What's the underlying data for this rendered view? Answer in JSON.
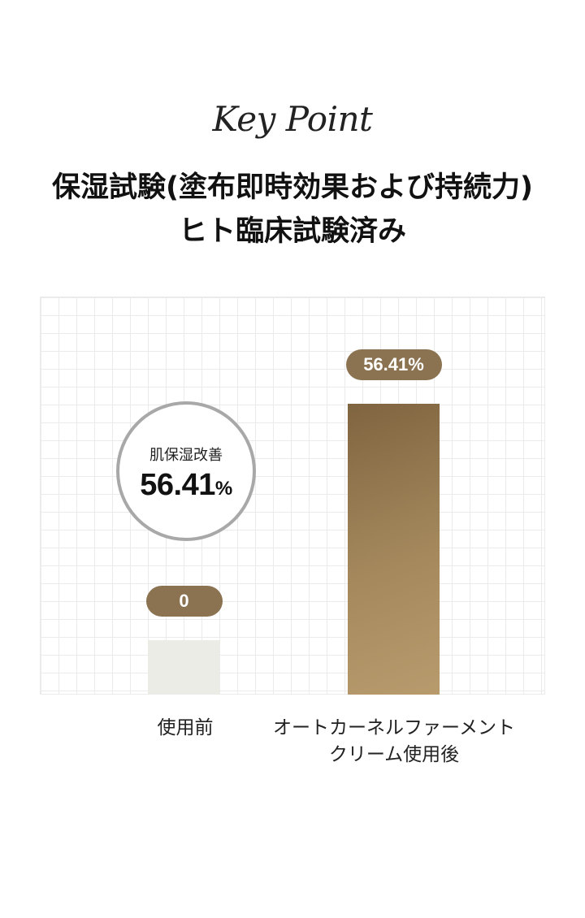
{
  "header": {
    "eyebrow": "Key Point",
    "title_line1": "保湿試験(塗布即時効果および持続力)",
    "title_line2": "ヒト臨床試験済み"
  },
  "highlight": {
    "label": "肌保湿改善",
    "value": "56.41",
    "unit": "%"
  },
  "chart_data": {
    "type": "bar",
    "categories": [
      "使用前",
      "オートカーネルファーメント\nクリーム使用後"
    ],
    "category_lines": [
      [
        "使用前"
      ],
      [
        "オートカーネルファーメント",
        "クリーム使用後"
      ]
    ],
    "values": [
      0,
      56.41
    ],
    "data_labels": [
      "0",
      "56.41%"
    ],
    "ylabel": "",
    "xlabel": "",
    "grid": true,
    "colors": {
      "before": "#ecece6",
      "after": "#a5895d",
      "label_pill": "#8b7352",
      "circle_ring": "#a8a8a8"
    }
  }
}
